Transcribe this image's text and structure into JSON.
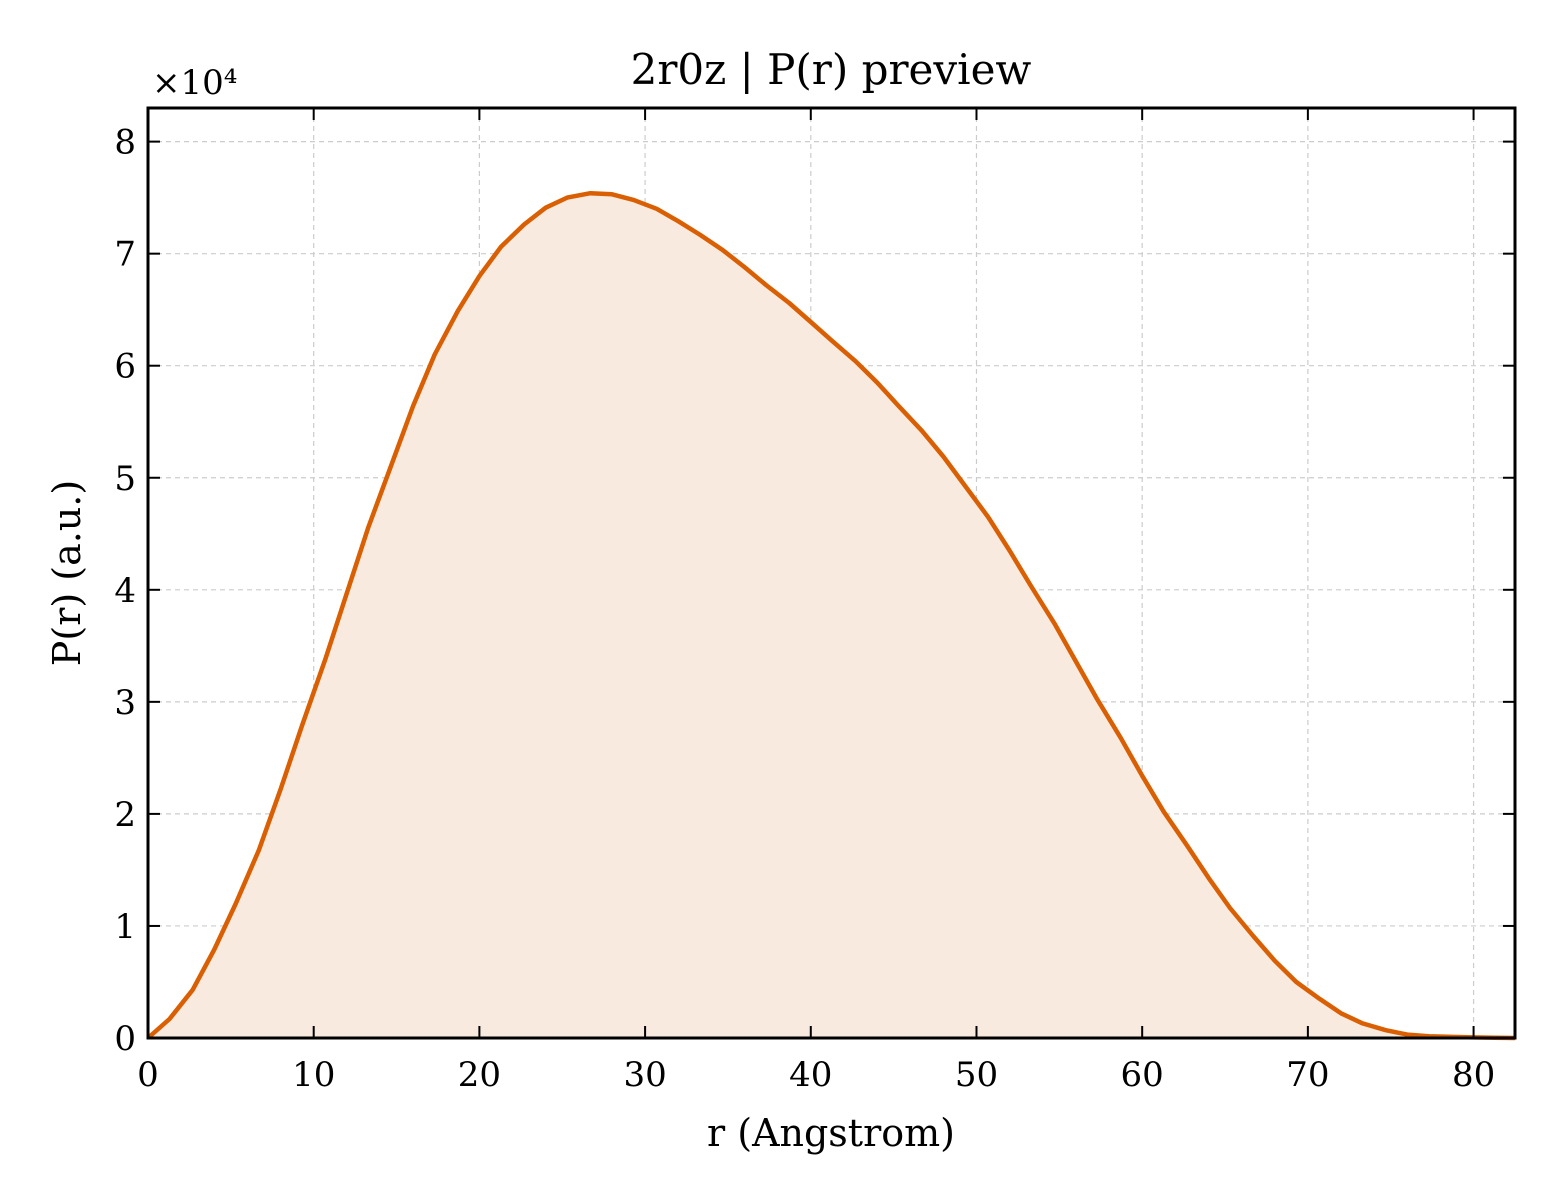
{
  "chart_data": {
    "type": "area",
    "title": "2r0z | P(r) preview",
    "xlabel": "r (Angstrom)",
    "ylabel": "P(r) (a.u.)",
    "y_multiplier": "×10⁴",
    "xlim": [
      0,
      82.5
    ],
    "ylim": [
      0,
      8.3
    ],
    "x_ticks": [
      0,
      10,
      20,
      30,
      40,
      50,
      60,
      70,
      80
    ],
    "y_ticks": [
      0,
      1,
      2,
      3,
      4,
      5,
      6,
      7,
      8
    ],
    "x_tick_labels": [
      "0",
      "10",
      "20",
      "30",
      "40",
      "50",
      "60",
      "70",
      "80"
    ],
    "y_tick_labels": [
      "0",
      "1",
      "2",
      "3",
      "4",
      "5",
      "6",
      "7",
      "8"
    ],
    "grid": true,
    "line_color": "#d95f02",
    "fill_color": "#f9eae0",
    "series": [
      {
        "x": [
          0,
          1.3,
          2.7,
          4.0,
          5.3,
          6.7,
          8.0,
          9.3,
          10.7,
          12.0,
          13.3,
          14.7,
          16.0,
          17.3,
          18.7,
          20.0,
          21.3,
          22.7,
          24.0,
          25.3,
          26.7,
          28.0,
          29.3,
          30.7,
          32.0,
          33.3,
          34.7,
          36.0,
          37.3,
          38.7,
          40.0,
          41.3,
          42.7,
          44.0,
          45.3,
          46.7,
          48.0,
          49.3,
          50.7,
          52.0,
          53.3,
          54.7,
          56.0,
          57.3,
          58.7,
          60.0,
          61.3,
          62.7,
          64.0,
          65.3,
          66.7,
          68.0,
          69.3,
          70.7,
          72.0,
          73.3,
          74.7,
          76.0,
          77.3,
          78.7,
          80.0,
          81.3,
          82.5
        ],
        "y": [
          0.0,
          0.17,
          0.43,
          0.79,
          1.2,
          1.68,
          2.22,
          2.79,
          3.38,
          3.97,
          4.56,
          5.12,
          5.64,
          6.1,
          6.49,
          6.8,
          7.06,
          7.26,
          7.41,
          7.5,
          7.54,
          7.53,
          7.48,
          7.4,
          7.29,
          7.17,
          7.03,
          6.88,
          6.72,
          6.56,
          6.39,
          6.22,
          6.04,
          5.85,
          5.64,
          5.42,
          5.19,
          4.93,
          4.65,
          4.35,
          4.03,
          3.7,
          3.36,
          3.02,
          2.68,
          2.34,
          2.02,
          1.72,
          1.43,
          1.16,
          0.91,
          0.69,
          0.5,
          0.35,
          0.22,
          0.13,
          0.07,
          0.03,
          0.015,
          0.01,
          0.005,
          0.002,
          0.0
        ]
      }
    ]
  }
}
